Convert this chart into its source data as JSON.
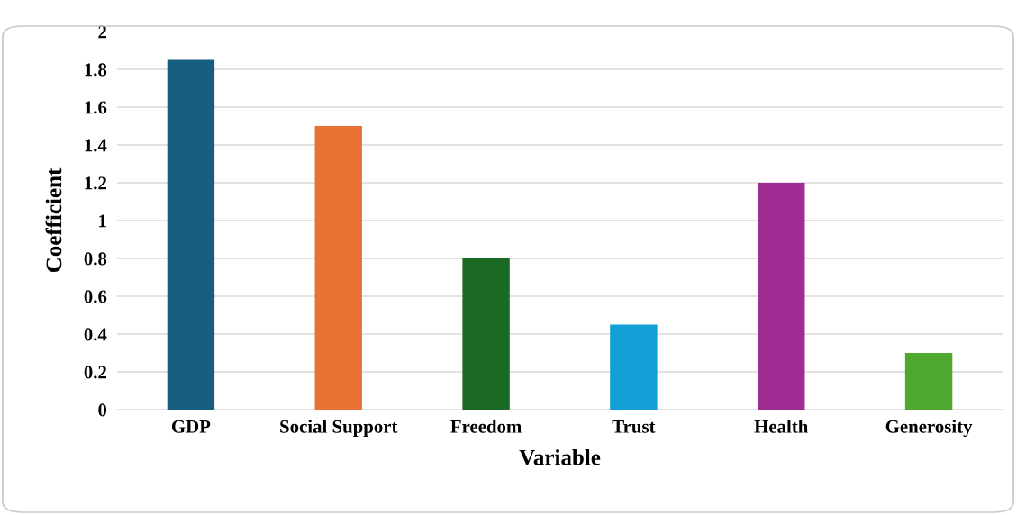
{
  "chart_data": {
    "type": "bar",
    "xlabel": "Variable",
    "ylabel": "Coefficient",
    "categories": [
      "GDP",
      "Social Support",
      "Freedom",
      "Trust",
      "Health",
      "Generosity"
    ],
    "values": [
      1.85,
      1.5,
      0.8,
      0.45,
      1.2,
      0.3
    ],
    "colors": [
      "#175e80",
      "#e87234",
      "#1b6a23",
      "#139fd6",
      "#a02b92",
      "#4ea72e"
    ],
    "ylim": [
      0,
      2
    ],
    "yticks": [
      0,
      0.2,
      0.4,
      0.6,
      0.8,
      1,
      1.2,
      1.4,
      1.6,
      1.8,
      2
    ],
    "grid": "y",
    "legend": false
  }
}
